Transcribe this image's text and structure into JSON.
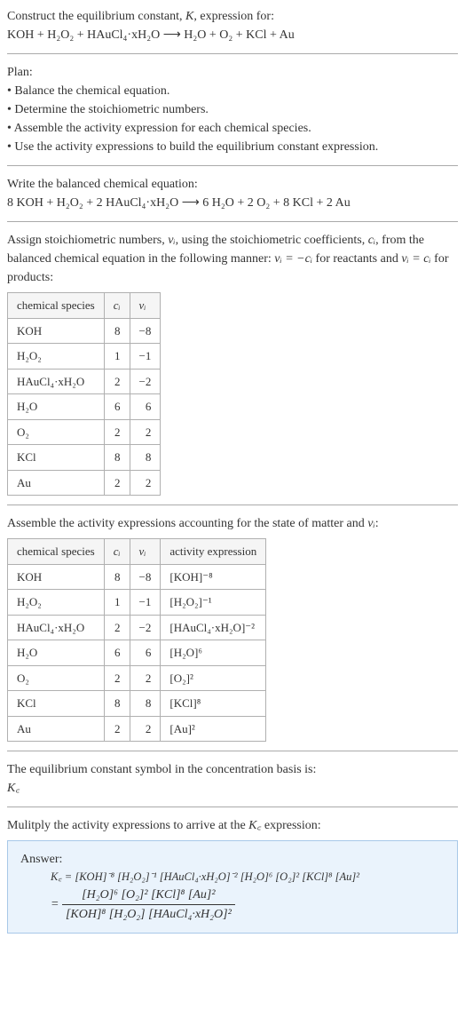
{
  "intro": {
    "line1_prefix": "Construct the equilibrium constant, ",
    "line1_K": "K",
    "line1_suffix": ", expression for:",
    "equation": "KOH + H₂O₂ + HAuCl₄·xH₂O  ⟶  H₂O + O₂ + KCl + Au"
  },
  "plan": {
    "heading": "Plan:",
    "items": [
      "Balance the chemical equation.",
      "Determine the stoichiometric numbers.",
      "Assemble the activity expression for each chemical species.",
      "Use the activity expressions to build the equilibrium constant expression."
    ]
  },
  "balanced": {
    "heading": "Write the balanced chemical equation:",
    "equation": "8 KOH + H₂O₂ + 2 HAuCl₄·xH₂O  ⟶  6 H₂O + 2 O₂ + 8 KCl + 2 Au"
  },
  "stoich": {
    "text_before": "Assign stoichiometric numbers, ",
    "nu": "νᵢ",
    "text_mid1": ", using the stoichiometric coefficients, ",
    "ci": "cᵢ",
    "text_mid2": ", from the balanced chemical equation in the following manner: ",
    "rel1": "νᵢ = −cᵢ",
    "text_mid3": " for reactants and ",
    "rel2": "νᵢ = cᵢ",
    "text_end": " for products:",
    "table": {
      "headers": [
        "chemical species",
        "cᵢ",
        "νᵢ"
      ],
      "rows": [
        [
          "KOH",
          "8",
          "−8"
        ],
        [
          "H₂O₂",
          "1",
          "−1"
        ],
        [
          "HAuCl₄·xH₂O",
          "2",
          "−2"
        ],
        [
          "H₂O",
          "6",
          "6"
        ],
        [
          "O₂",
          "2",
          "2"
        ],
        [
          "KCl",
          "8",
          "8"
        ],
        [
          "Au",
          "2",
          "2"
        ]
      ]
    }
  },
  "activity": {
    "text_before": "Assemble the activity expressions accounting for the state of matter and ",
    "nu": "νᵢ",
    "text_after": ":",
    "table": {
      "headers": [
        "chemical species",
        "cᵢ",
        "νᵢ",
        "activity expression"
      ],
      "rows": [
        [
          "KOH",
          "8",
          "−8",
          "[KOH]⁻⁸"
        ],
        [
          "H₂O₂",
          "1",
          "−1",
          "[H₂O₂]⁻¹"
        ],
        [
          "HAuCl₄·xH₂O",
          "2",
          "−2",
          "[HAuCl₄·xH₂O]⁻²"
        ],
        [
          "H₂O",
          "6",
          "6",
          "[H₂O]⁶"
        ],
        [
          "O₂",
          "2",
          "2",
          "[O₂]²"
        ],
        [
          "KCl",
          "8",
          "8",
          "[KCl]⁸"
        ],
        [
          "Au",
          "2",
          "2",
          "[Au]²"
        ]
      ]
    }
  },
  "eqsym": {
    "text": "The equilibrium constant symbol in the concentration basis is:",
    "symbol": "K꜀"
  },
  "final": {
    "text_before": "Mulitply the activity expressions to arrive at the ",
    "kc": "K꜀",
    "text_after": " expression:",
    "answer_label": "Answer:",
    "line1": "K꜀ = [KOH]⁻⁸ [H₂O₂]⁻¹ [HAuCl₄·xH₂O]⁻² [H₂O]⁶ [O₂]² [KCl]⁸ [Au]²",
    "eq_prefix": "= ",
    "frac_num": "[H₂O]⁶ [O₂]² [KCl]⁸ [Au]²",
    "frac_den": "[KOH]⁸ [H₂O₂] [HAuCl₄·xH₂O]²"
  },
  "colors": {
    "text": "#333333",
    "rule": "#aaaaaa",
    "table_border": "#b0b0b0",
    "answer_bg": "#eaf3fc",
    "answer_border": "#a8c8e8"
  }
}
